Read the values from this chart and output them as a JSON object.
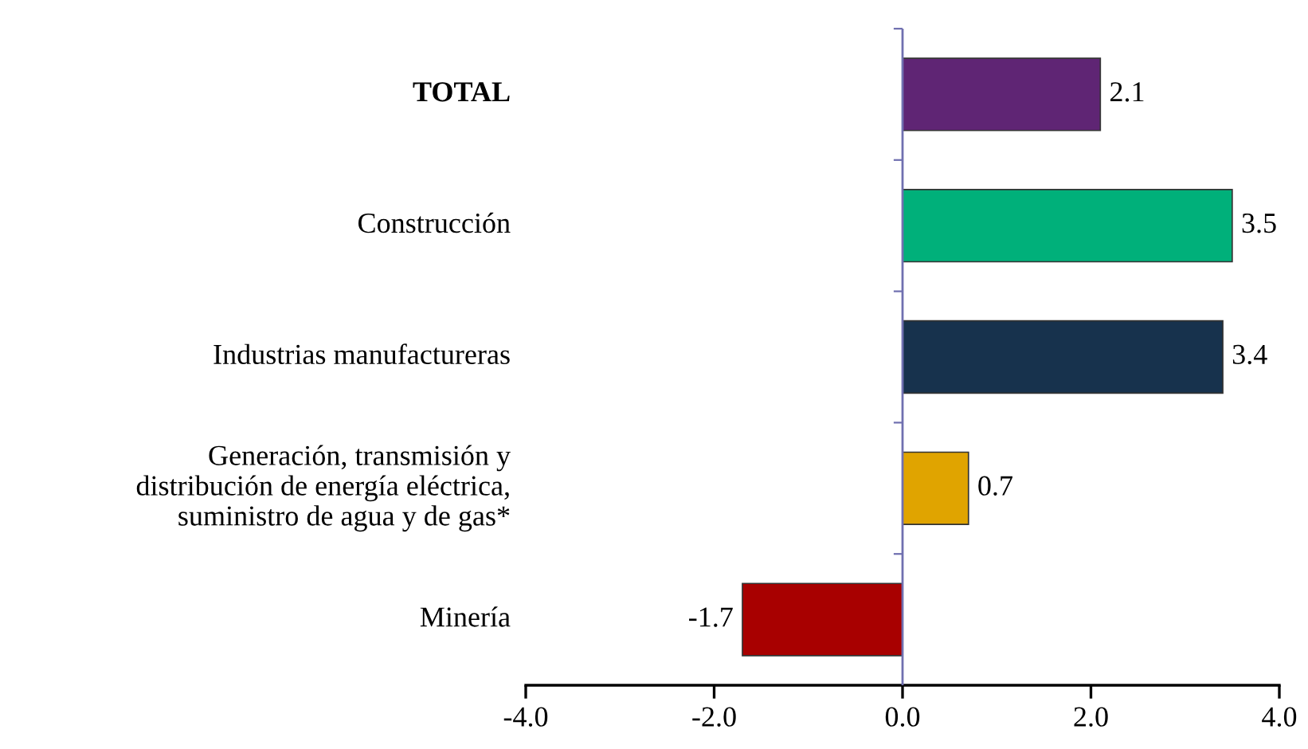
{
  "chart_data": {
    "type": "bar",
    "orientation": "horizontal",
    "categories": [
      "TOTAL",
      "Construcción",
      "Industrias manufactureras",
      "Generación, transmisión y\ndistribución de energía eléctrica,\nsuministro de agua y de gas*",
      "Minería"
    ],
    "values": [
      2.1,
      3.5,
      3.4,
      0.7,
      -1.7
    ],
    "colors": [
      "#5f2574",
      "#00b07a",
      "#17324d",
      "#e0a400",
      "#a80000"
    ],
    "xlim": [
      -4.0,
      4.0
    ],
    "xticks": [
      {
        "value": -4.0,
        "label": "-4.0"
      },
      {
        "value": -2.0,
        "label": "-2.0"
      },
      {
        "value": 0.0,
        "label": "0.0"
      },
      {
        "value": 2.0,
        "label": "2.0"
      },
      {
        "value": 4.0,
        "label": "4.0"
      }
    ],
    "ref_lines": [
      {
        "axis": "x",
        "value": 0.0,
        "color": "#7070b0"
      }
    ],
    "data_labels": true,
    "grid": false
  }
}
